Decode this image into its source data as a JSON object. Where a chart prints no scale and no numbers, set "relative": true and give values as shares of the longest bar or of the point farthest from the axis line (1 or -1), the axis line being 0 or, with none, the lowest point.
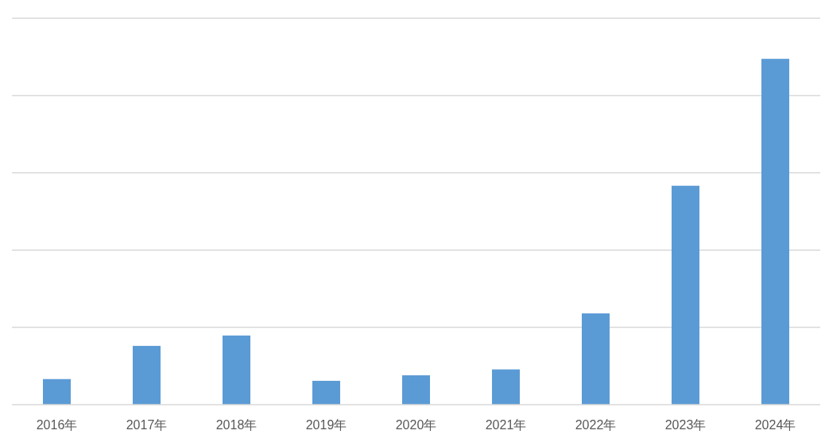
{
  "chart_data": {
    "type": "bar",
    "categories": [
      "2016年",
      "2017年",
      "2018年",
      "2019年",
      "2020年",
      "2021年",
      "2022年",
      "2023年",
      "2024年"
    ],
    "values": [
      0.074,
      0.17,
      0.2,
      0.069,
      0.085,
      0.102,
      0.264,
      0.633,
      1
    ],
    "color": "#5b9bd5",
    "relative": true,
    "grid": "y"
  }
}
